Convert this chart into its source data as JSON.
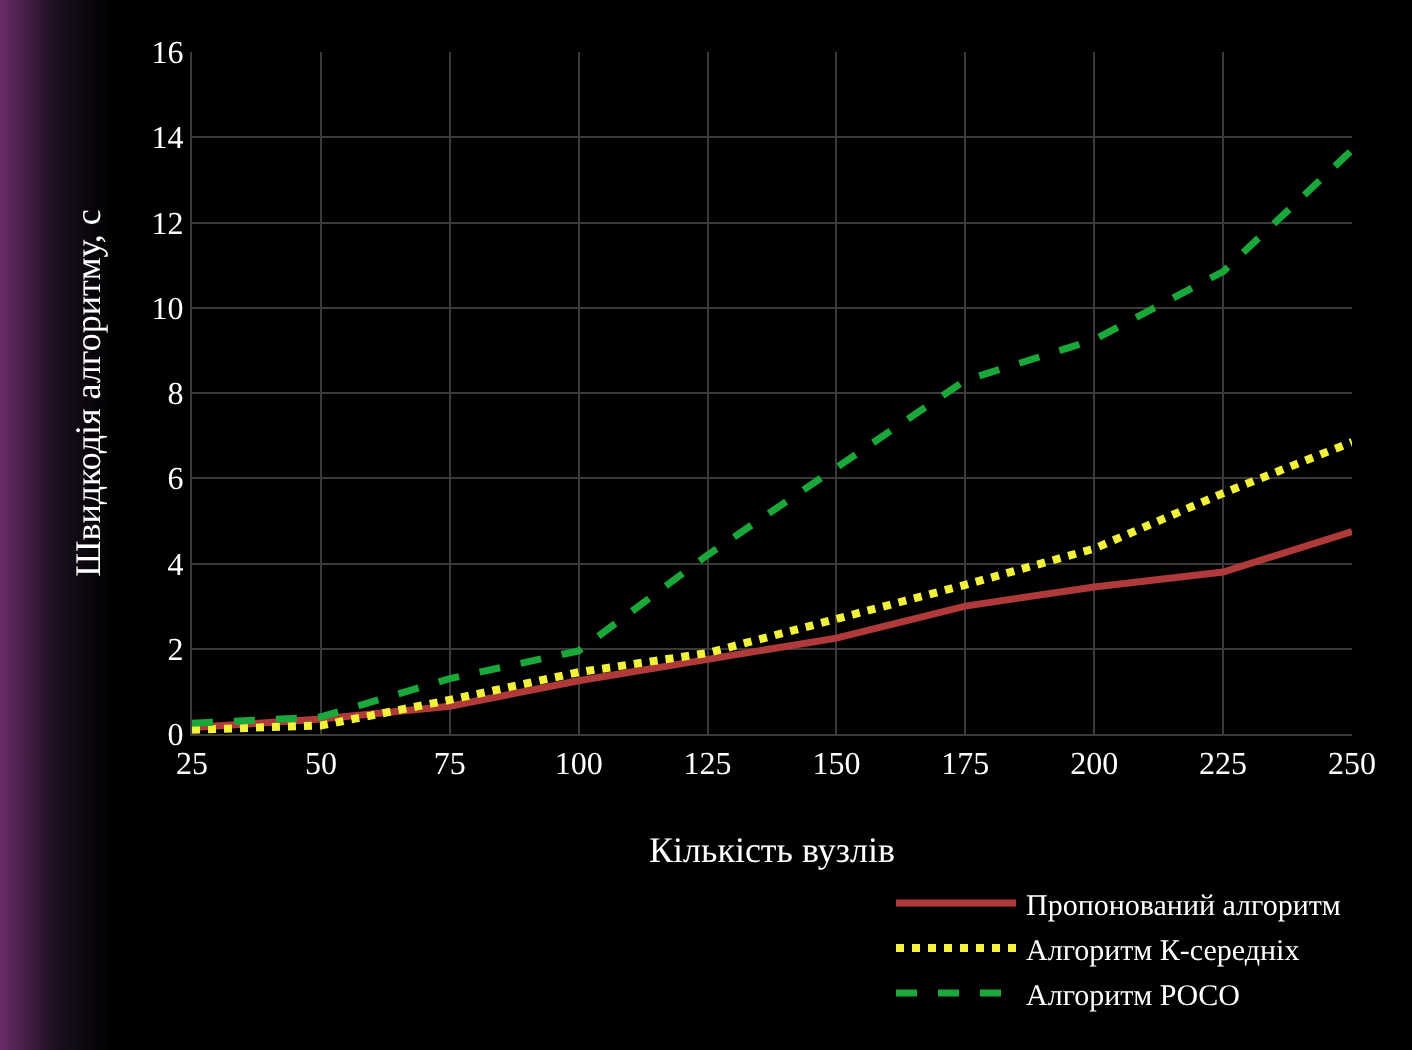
{
  "chart_data": {
    "type": "line",
    "xlabel": "Кількість вузлів",
    "ylabel": "Швидкодія алгоритму, с",
    "x": [
      25,
      50,
      75,
      100,
      125,
      150,
      175,
      200,
      225,
      250
    ],
    "series": [
      {
        "name": "Пропонований алгоритм",
        "color": "#b03a3a",
        "line_style": "solid",
        "values": [
          0.15,
          0.35,
          0.65,
          1.25,
          1.75,
          2.25,
          3.0,
          3.45,
          3.8,
          4.75
        ]
      },
      {
        "name": "Алгоритм К-середніх",
        "color": "#f2f23a",
        "line_style": "dotted",
        "values": [
          0.1,
          0.2,
          0.8,
          1.45,
          1.9,
          2.7,
          3.5,
          4.35,
          5.65,
          6.85
        ]
      },
      {
        "name": "Алгоритм POCO",
        "color": "#1aa83a",
        "line_style": "dashed",
        "values": [
          0.25,
          0.4,
          1.3,
          1.95,
          4.2,
          6.25,
          8.3,
          9.25,
          10.85,
          13.7
        ]
      }
    ],
    "xlim": [
      25,
      250
    ],
    "xticks": [
      25,
      50,
      75,
      100,
      125,
      150,
      175,
      200,
      225,
      250
    ],
    "ylim": [
      0,
      16
    ],
    "yticks": [
      0,
      2,
      4,
      6,
      8,
      10,
      12,
      14,
      16
    ],
    "grid": true,
    "legend": "bottom right",
    "marker": "none"
  }
}
